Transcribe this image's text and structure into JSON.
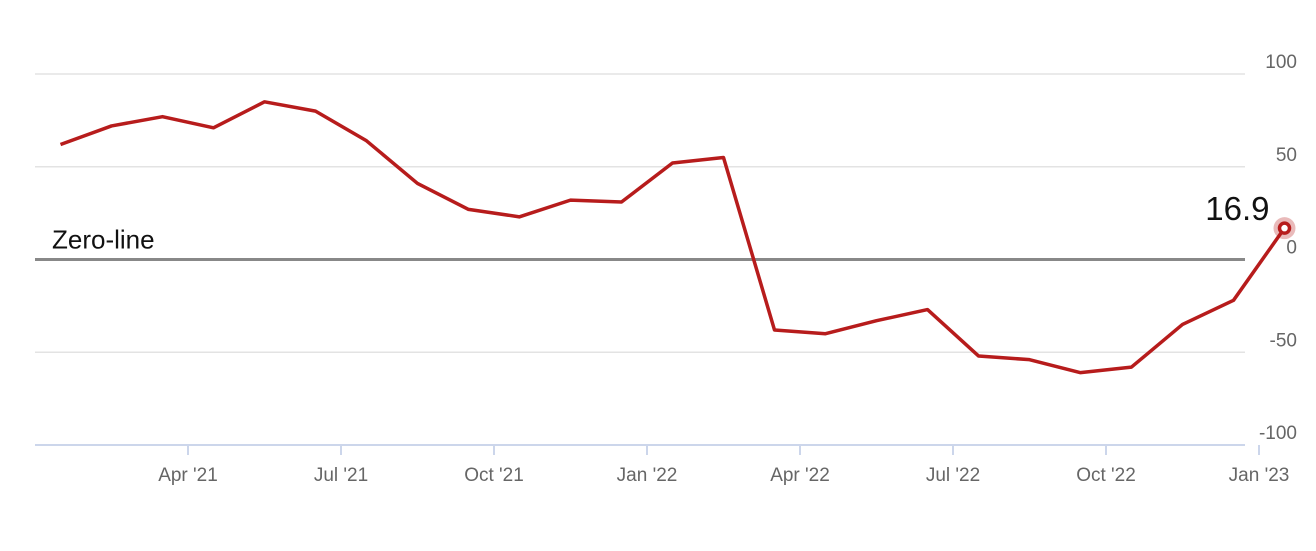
{
  "chart_data": {
    "type": "line",
    "x": [
      "2021-01",
      "2021-02",
      "2021-03",
      "2021-04",
      "2021-05",
      "2021-06",
      "2021-07",
      "2021-08",
      "2021-09",
      "2021-10",
      "2021-11",
      "2021-12",
      "2022-01",
      "2022-02",
      "2022-03",
      "2022-04",
      "2022-05",
      "2022-06",
      "2022-07",
      "2022-08",
      "2022-09",
      "2022-10",
      "2022-11",
      "2022-12",
      "2023-01"
    ],
    "series": [
      {
        "color": "#b71c1c",
        "values": [
          62,
          72,
          77,
          71,
          85,
          80,
          64,
          41,
          27,
          23,
          32,
          31,
          52,
          55,
          -38,
          -40,
          -33,
          -27,
          -52,
          -54,
          -61,
          -58,
          -35,
          -22,
          16.9
        ]
      }
    ],
    "xlim": [
      "2021-01",
      "2023-01"
    ],
    "xticks": [
      {
        "value": "2021-04",
        "label": "Apr '21"
      },
      {
        "value": "2021-07",
        "label": "Jul '21"
      },
      {
        "value": "2021-10",
        "label": "Oct '21"
      },
      {
        "value": "2022-01",
        "label": "Jan '22"
      },
      {
        "value": "2022-04",
        "label": "Apr '22"
      },
      {
        "value": "2022-07",
        "label": "Jul '22"
      },
      {
        "value": "2022-10",
        "label": "Oct '22"
      },
      {
        "value": "2023-01",
        "label": "Jan '23"
      }
    ],
    "ylim": [
      -100,
      100
    ],
    "yticks": [
      100,
      50,
      0,
      -50,
      -100
    ],
    "grid": true,
    "annotations": [
      {
        "text": "Zero-line",
        "value": 0
      }
    ],
    "last_value_label": "16.9"
  }
}
